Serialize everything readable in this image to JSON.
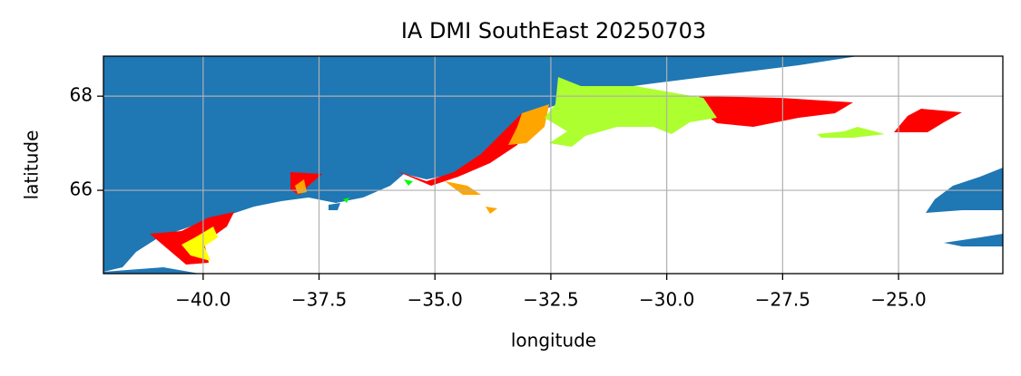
{
  "chart_data": {
    "type": "map",
    "title": "IA DMI SouthEast 20250703",
    "xlabel": "longitude",
    "ylabel": "latitude",
    "xlim": [
      -42.15,
      -22.75
    ],
    "ylim": [
      64.23,
      68.85
    ],
    "xticks": [
      {
        "value": -40,
        "label": "−40.0"
      },
      {
        "value": -37.5,
        "label": "−37.5"
      },
      {
        "value": -35,
        "label": "−35.0"
      },
      {
        "value": -32.5,
        "label": "−32.5"
      },
      {
        "value": -30,
        "label": "−30.0"
      },
      {
        "value": -27.5,
        "label": "−27.5"
      },
      {
        "value": -25,
        "label": "−25.0"
      }
    ],
    "yticks": [
      66,
      68
    ],
    "grid": true
  }
}
